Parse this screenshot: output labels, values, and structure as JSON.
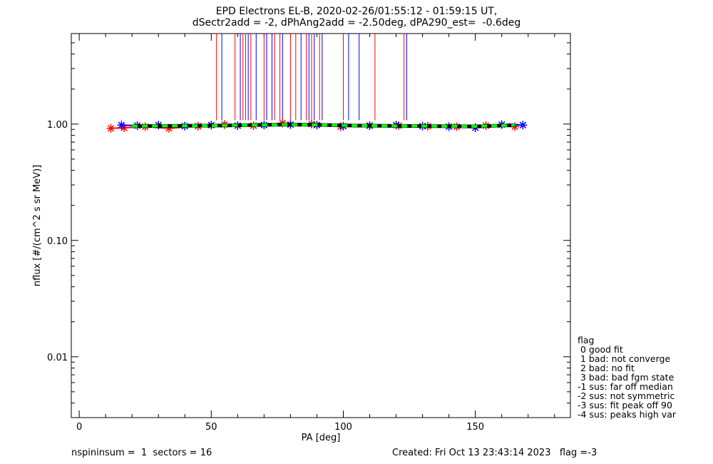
{
  "title": {
    "line1": "EPD Electrons EL-B, 2020-02-26/01:55:12 - 01:59:15 UT,",
    "line2": "dSectr2add = -2, dPhAng2add = -2.50deg, dPA290_est=  -0.6deg"
  },
  "footer": {
    "left": "nspininsum =  1  sectors = 16",
    "right": "Created: Fri Oct 13 23:43:14 2023   flag =-3"
  },
  "legend": {
    "header": "flag",
    "items": [
      " 0 good fit",
      " 1 bad: not converge",
      " 2 bad: no fit",
      " 3 bad: bad fgm state",
      "-1 sus: far off median",
      "-2 sus: not symmetric",
      "-3 sus: fit peak off 90",
      "-4 sus: peaks high var"
    ]
  },
  "colors": {
    "red": "#ff0000",
    "blue": "#0000ff",
    "green": "#00ff00",
    "black": "#000000"
  },
  "chart_data": {
    "type": "line",
    "title": "EPD Electrons EL-B, 2020-02-26/01:55:12 - 01:59:15 UT,",
    "subtitle": "dSectr2add = -2, dPhAng2add = -2.50deg, dPA290_est=  -0.6deg",
    "xlabel": "PA [deg]",
    "ylabel": "nflux [#/(cm^2 s sr MeV)]",
    "xlim": [
      -3,
      186
    ],
    "ylim": [
      0.003,
      6
    ],
    "yscale": "log",
    "x_ticks": [
      0,
      50,
      100,
      150
    ],
    "x_tick_labels": [
      "0",
      "50",
      "100",
      "150"
    ],
    "y_ticks": [
      0.01,
      0.1,
      1.0
    ],
    "y_tick_labels": [
      "0.01",
      "0.10",
      "1.00"
    ],
    "grid": false,
    "legend_position": "right-bottom",
    "series": [
      {
        "color": "red",
        "x": [
          12,
          17,
          25,
          34,
          45,
          55,
          66,
          77,
          88,
          99,
          110,
          121,
          132,
          143,
          154,
          165
        ],
        "y": [
          0.92,
          0.93,
          0.95,
          0.92,
          0.96,
          0.99,
          0.97,
          1.02,
          1.0,
          0.95,
          0.97,
          0.97,
          0.96,
          0.95,
          0.97,
          0.95
        ]
      },
      {
        "color": "blue",
        "x": [
          16,
          22,
          30,
          40,
          50,
          60,
          70,
          80,
          90,
          100,
          110,
          120,
          130,
          140,
          150,
          160,
          168
        ],
        "y": [
          0.98,
          0.97,
          0.98,
          0.96,
          0.98,
          0.97,
          0.98,
          0.99,
          0.98,
          0.96,
          0.97,
          0.98,
          0.96,
          0.95,
          0.93,
          0.99,
          0.98
        ]
      },
      {
        "color": "green",
        "style": "dashed",
        "x": [
          20,
          35,
          50,
          65,
          78,
          90,
          105,
          120,
          135,
          150,
          165
        ],
        "y": [
          0.96,
          0.965,
          0.97,
          0.98,
          0.99,
          0.985,
          0.97,
          0.965,
          0.96,
          0.955,
          0.98
        ]
      }
    ],
    "vertical_lines": {
      "ymin": 1.08,
      "ymax": 6,
      "red": [
        52,
        59,
        62,
        63,
        65,
        70,
        74,
        76,
        80,
        82,
        86,
        88,
        91,
        100,
        112,
        123
      ],
      "blue": [
        54,
        61,
        64,
        67,
        71,
        73,
        77,
        84,
        87,
        89,
        92,
        102,
        106,
        124
      ]
    }
  }
}
